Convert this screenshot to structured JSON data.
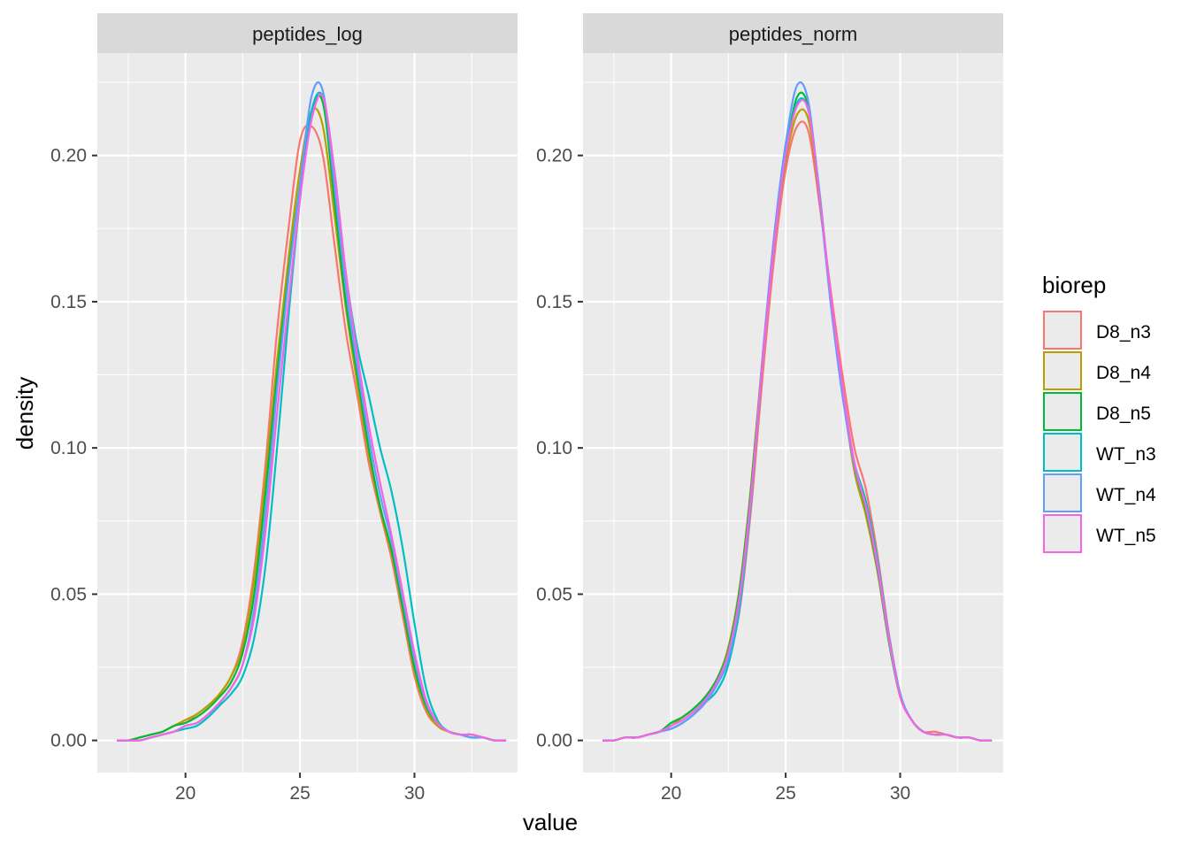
{
  "chart_data": {
    "type": "line",
    "subtype": "density",
    "xlabel": "value",
    "ylabel": "density",
    "xlim": [
      16.15,
      34.5
    ],
    "ylim": [
      -0.011,
      0.235
    ],
    "x_ticks": [
      20,
      25,
      30
    ],
    "x_tick_labels": [
      "20",
      "25",
      "30"
    ],
    "y_ticks": [
      0,
      0.05,
      0.1,
      0.15,
      0.2
    ],
    "y_tick_labels": [
      "0.00",
      "0.05",
      "0.10",
      "0.15",
      "0.20"
    ],
    "grid": true,
    "legend": {
      "title": "biorep",
      "position": "right",
      "entries": [
        {
          "name": "D8_n3",
          "color": "#F8766D"
        },
        {
          "name": "D8_n4",
          "color": "#B79F00"
        },
        {
          "name": "D8_n5",
          "color": "#00BA38"
        },
        {
          "name": "WT_n3",
          "color": "#00BFC4"
        },
        {
          "name": "WT_n4",
          "color": "#619CFF"
        },
        {
          "name": "WT_n5",
          "color": "#F564E3"
        }
      ]
    },
    "x": [
      17,
      17.5,
      18,
      18.5,
      19,
      19.5,
      20,
      20.5,
      21,
      21.5,
      22,
      22.5,
      23,
      23.5,
      24,
      24.5,
      25,
      25.5,
      26,
      26.5,
      27,
      27.5,
      28,
      28.5,
      29,
      29.5,
      30,
      30.5,
      31,
      31.5,
      32,
      32.5,
      33,
      33.5,
      34
    ],
    "facets": [
      {
        "title": "peptides_log",
        "series": [
          {
            "name": "D8_n3",
            "values": [
              0,
              0,
              0.001,
              0.002,
              0.003,
              0.005,
              0.006,
              0.009,
              0.012,
              0.016,
              0.022,
              0.034,
              0.058,
              0.095,
              0.14,
              0.175,
              0.205,
              0.21,
              0.2,
              0.17,
              0.14,
              0.118,
              0.095,
              0.078,
              0.062,
              0.042,
              0.022,
              0.01,
              0.005,
              0.003,
              0.002,
              0.002,
              0.001,
              0,
              0
            ]
          },
          {
            "name": "D8_n4",
            "values": [
              0,
              0,
              0.001,
              0.002,
              0.003,
              0.005,
              0.007,
              0.009,
              0.012,
              0.016,
              0.022,
              0.032,
              0.055,
              0.09,
              0.13,
              0.165,
              0.195,
              0.215,
              0.21,
              0.18,
              0.148,
              0.122,
              0.098,
              0.079,
              0.064,
              0.044,
              0.024,
              0.011,
              0.005,
              0.003,
              0.002,
              0.001,
              0.001,
              0,
              0
            ]
          },
          {
            "name": "D8_n5",
            "values": [
              0,
              0,
              0.001,
              0.002,
              0.003,
              0.005,
              0.006,
              0.008,
              0.011,
              0.015,
              0.02,
              0.03,
              0.05,
              0.085,
              0.125,
              0.16,
              0.19,
              0.215,
              0.218,
              0.185,
              0.15,
              0.125,
              0.1,
              0.08,
              0.065,
              0.045,
              0.025,
              0.012,
              0.006,
              0.003,
              0.002,
              0.002,
              0.001,
              0,
              0
            ]
          },
          {
            "name": "WT_n3",
            "values": [
              0,
              0,
              0,
              0.001,
              0.002,
              0.003,
              0.004,
              0.005,
              0.008,
              0.012,
              0.016,
              0.022,
              0.035,
              0.06,
              0.1,
              0.145,
              0.185,
              0.215,
              0.22,
              0.195,
              0.16,
              0.135,
              0.118,
              0.1,
              0.085,
              0.065,
              0.04,
              0.018,
              0.007,
              0.003,
              0.002,
              0.001,
              0.001,
              0,
              0
            ]
          },
          {
            "name": "WT_n4",
            "values": [
              0,
              0,
              0,
              0.001,
              0.002,
              0.003,
              0.005,
              0.006,
              0.009,
              0.013,
              0.018,
              0.026,
              0.045,
              0.078,
              0.12,
              0.158,
              0.19,
              0.22,
              0.222,
              0.19,
              0.155,
              0.128,
              0.104,
              0.084,
              0.068,
              0.048,
              0.028,
              0.013,
              0.006,
              0.003,
              0.002,
              0.001,
              0.001,
              0,
              0
            ]
          },
          {
            "name": "WT_n5",
            "values": [
              0,
              0,
              0,
              0.001,
              0.002,
              0.003,
              0.005,
              0.006,
              0.009,
              0.013,
              0.018,
              0.026,
              0.042,
              0.072,
              0.112,
              0.15,
              0.185,
              0.212,
              0.22,
              0.195,
              0.16,
              0.132,
              0.108,
              0.088,
              0.07,
              0.05,
              0.03,
              0.014,
              0.006,
              0.003,
              0.002,
              0.002,
              0.001,
              0,
              0
            ]
          }
        ]
      },
      {
        "title": "peptides_norm",
        "series": [
          {
            "name": "D8_n3",
            "values": [
              0,
              0,
              0.001,
              0.001,
              0.002,
              0.003,
              0.004,
              0.006,
              0.009,
              0.013,
              0.02,
              0.028,
              0.045,
              0.08,
              0.125,
              0.165,
              0.195,
              0.21,
              0.208,
              0.182,
              0.152,
              0.124,
              0.1,
              0.086,
              0.064,
              0.037,
              0.016,
              0.007,
              0.003,
              0.003,
              0.002,
              0.001,
              0.001,
              0,
              0
            ]
          },
          {
            "name": "D8_n4",
            "values": [
              0,
              0,
              0.001,
              0.001,
              0.002,
              0.003,
              0.005,
              0.008,
              0.011,
              0.015,
              0.021,
              0.032,
              0.053,
              0.088,
              0.132,
              0.17,
              0.198,
              0.214,
              0.212,
              0.184,
              0.148,
              0.118,
              0.092,
              0.077,
              0.058,
              0.034,
              0.015,
              0.007,
              0.003,
              0.002,
              0.002,
              0.001,
              0.001,
              0,
              0
            ]
          },
          {
            "name": "D8_n5",
            "values": [
              0,
              0,
              0.001,
              0.001,
              0.002,
              0.003,
              0.006,
              0.008,
              0.011,
              0.015,
              0.021,
              0.031,
              0.052,
              0.087,
              0.131,
              0.17,
              0.2,
              0.22,
              0.216,
              0.184,
              0.149,
              0.119,
              0.094,
              0.079,
              0.059,
              0.034,
              0.015,
              0.007,
              0.003,
              0.002,
              0.002,
              0.001,
              0.001,
              0,
              0
            ]
          },
          {
            "name": "WT_n3",
            "values": [
              0,
              0,
              0.001,
              0.001,
              0.002,
              0.003,
              0.004,
              0.006,
              0.009,
              0.013,
              0.017,
              0.026,
              0.046,
              0.083,
              0.13,
              0.17,
              0.2,
              0.218,
              0.215,
              0.186,
              0.148,
              0.117,
              0.095,
              0.082,
              0.062,
              0.036,
              0.016,
              0.007,
              0.003,
              0.002,
              0.002,
              0.001,
              0.001,
              0,
              0
            ]
          },
          {
            "name": "WT_n4",
            "values": [
              0,
              0,
              0.001,
              0.001,
              0.002,
              0.003,
              0.004,
              0.006,
              0.009,
              0.013,
              0.019,
              0.028,
              0.048,
              0.084,
              0.132,
              0.173,
              0.204,
              0.224,
              0.218,
              0.184,
              0.147,
              0.117,
              0.094,
              0.08,
              0.061,
              0.036,
              0.016,
              0.007,
              0.003,
              0.002,
              0.002,
              0.001,
              0.001,
              0,
              0
            ]
          },
          {
            "name": "WT_n5",
            "values": [
              0,
              0,
              0.001,
              0.001,
              0.002,
              0.003,
              0.005,
              0.007,
              0.01,
              0.014,
              0.02,
              0.03,
              0.05,
              0.085,
              0.13,
              0.17,
              0.2,
              0.217,
              0.215,
              0.185,
              0.15,
              0.12,
              0.095,
              0.08,
              0.06,
              0.035,
              0.015,
              0.007,
              0.003,
              0.002,
              0.002,
              0.001,
              0.001,
              0,
              0
            ]
          }
        ]
      }
    ]
  }
}
